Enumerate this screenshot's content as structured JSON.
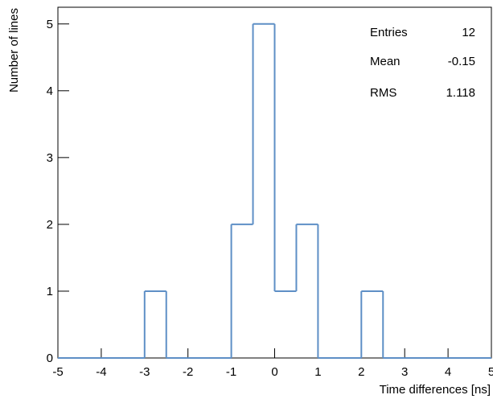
{
  "chart_data": {
    "type": "histogram",
    "bins": [
      -5,
      -4.5,
      -4,
      -3.5,
      -3,
      -2.5,
      -2,
      -1.5,
      -1,
      -0.5,
      0,
      0.5,
      1,
      1.5,
      2,
      2.5,
      3,
      3.5,
      4,
      4.5,
      5
    ],
    "counts": [
      0,
      0,
      0,
      0,
      1,
      0,
      0,
      0,
      2,
      5,
      1,
      2,
      0,
      0,
      1,
      0,
      0,
      0,
      0,
      0
    ],
    "color": "#5e8fc6",
    "xlabel": "Time differences [ns]",
    "ylabel": "Number of lines",
    "xlim": [
      -5,
      5
    ],
    "xticks": [
      -5,
      -4,
      -3,
      -2,
      -1,
      0,
      1,
      2,
      3,
      4,
      5
    ],
    "ylim": [
      0,
      5.25
    ],
    "yticks": [
      0,
      1,
      2,
      3,
      4,
      5
    ],
    "stats": [
      {
        "label": "Entries",
        "value": 12
      },
      {
        "label": "Mean",
        "value": -0.15
      },
      {
        "label": "RMS",
        "value": 1.118
      }
    ]
  }
}
